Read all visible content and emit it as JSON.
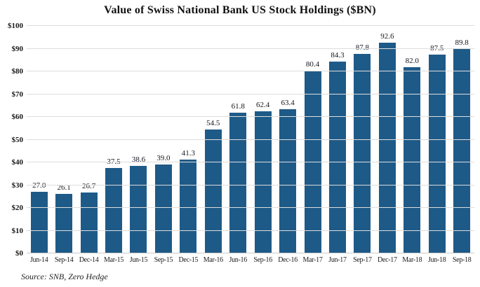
{
  "chart_data": {
    "type": "bar",
    "title": "Value of Swiss National Bank US Stock Holdings ($BN)",
    "categories": [
      "Jun-14",
      "Sep-14",
      "Dec-14",
      "Mar-15",
      "Jun-15",
      "Sep-15",
      "Dec-15",
      "Mar-16",
      "Jun-16",
      "Sep-16",
      "Dec-16",
      "Mar-17",
      "Jun-17",
      "Sep-17",
      "Dec-17",
      "Mar-18",
      "Jun-18",
      "Sep-18"
    ],
    "values": [
      27.0,
      26.1,
      26.7,
      37.5,
      38.6,
      39.0,
      41.3,
      54.5,
      61.8,
      62.4,
      63.4,
      80.4,
      84.3,
      87.8,
      92.6,
      82.0,
      87.5,
      89.8
    ],
    "value_labels": [
      "27.0",
      "26.1",
      "26.7",
      "37.5",
      "38.6",
      "39.0",
      "41.3",
      "54.5",
      "61.8",
      "62.4",
      "63.4",
      "80.4",
      "84.3",
      "87.8",
      "92.6",
      "82.0",
      "87.5",
      "89.8"
    ],
    "xlabel": "",
    "ylabel": "",
    "y_axis": {
      "min": 0,
      "max": 100,
      "step": 10,
      "tick_labels": [
        "$0",
        "$10",
        "$20",
        "$30",
        "$40",
        "$50",
        "$60",
        "$70",
        "$80",
        "$90",
        "$100"
      ]
    },
    "grid": "horizontal",
    "legend": "none",
    "bar_color": "#1e5a87",
    "source": "Source: SNB, Zero Hedge"
  }
}
